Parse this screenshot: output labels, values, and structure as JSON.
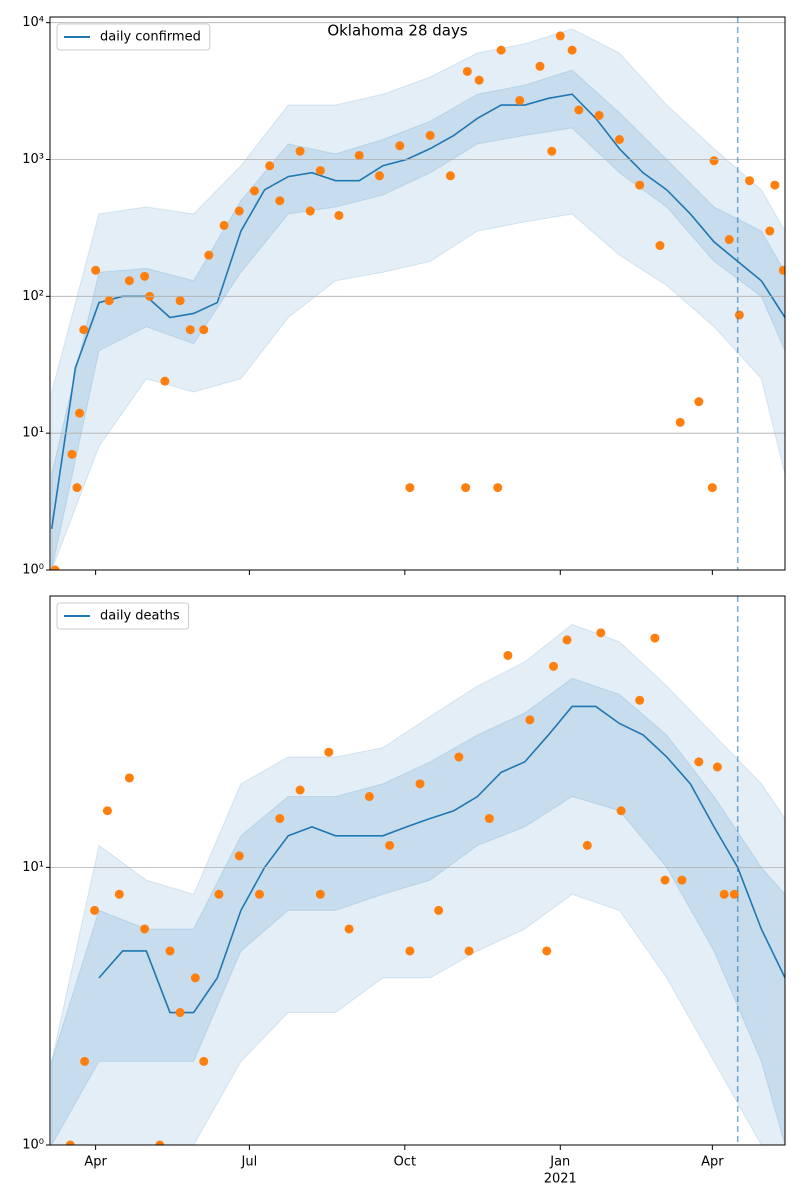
{
  "chart_data": [
    {
      "type": "line",
      "title": "Oklahoma 28 days",
      "log_y": true,
      "grid": true,
      "legend": "upper left",
      "xlim": [
        -27,
        408
      ],
      "xticks": [
        0,
        91,
        183,
        275,
        365
      ],
      "xtick_labels": false,
      "ylim": [
        1,
        11000
      ],
      "yticks": [
        {
          "value": 1,
          "label": "10⁰"
        },
        {
          "value": 10,
          "label": "10¹"
        },
        {
          "value": 100,
          "label": "10²"
        },
        {
          "value": 1000,
          "label": "10³"
        },
        {
          "value": 10000,
          "label": "10⁴"
        }
      ],
      "vline": 380,
      "bands": [
        {
          "color": "#1f77b4",
          "opacity": 0.12,
          "x": [
            -26,
            2,
            30,
            58,
            86,
            114,
            142,
            170,
            198,
            226,
            254,
            282,
            310,
            338,
            366,
            394,
            408
          ],
          "lower": [
            1,
            8,
            25,
            20,
            25,
            70,
            130,
            150,
            180,
            300,
            350,
            400,
            200,
            120,
            60,
            25,
            5
          ],
          "upper": [
            20,
            400,
            450,
            400,
            900,
            2500,
            2500,
            3000,
            4000,
            6000,
            7000,
            9000,
            6000,
            2500,
            1200,
            600,
            300
          ]
        },
        {
          "color": "#1f77b4",
          "opacity": 0.15,
          "x": [
            -26,
            2,
            30,
            58,
            86,
            114,
            142,
            170,
            198,
            226,
            254,
            282,
            310,
            338,
            366,
            394,
            408
          ],
          "lower": [
            1,
            40,
            60,
            45,
            150,
            400,
            450,
            550,
            800,
            1300,
            1500,
            1700,
            800,
            450,
            180,
            100,
            40
          ],
          "upper": [
            5,
            150,
            160,
            130,
            500,
            1300,
            1100,
            1400,
            1900,
            3000,
            3500,
            4500,
            2200,
            1000,
            450,
            300,
            150
          ]
        }
      ],
      "series": [
        {
          "name": "daily confirmed",
          "color": "#1f77b4",
          "x": [
            -26,
            -12,
            2,
            16,
            30,
            44,
            58,
            72,
            86,
            100,
            114,
            128,
            142,
            156,
            170,
            184,
            198,
            212,
            226,
            240,
            254,
            268,
            282,
            296,
            310,
            324,
            338,
            352,
            366,
            380,
            394,
            408
          ],
          "values": [
            2,
            30,
            90,
            100,
            100,
            70,
            75,
            90,
            300,
            600,
            750,
            800,
            700,
            700,
            900,
            1000,
            1200,
            1500,
            2000,
            2500,
            2500,
            2800,
            3000,
            2000,
            1200,
            800,
            600,
            400,
            250,
            180,
            130,
            70
          ]
        }
      ],
      "scatter": {
        "color": "#ff7f0e",
        "x": [
          -24,
          -14,
          -11,
          -9.5,
          -7,
          0,
          8,
          20,
          29,
          32,
          41,
          50,
          56,
          64,
          67,
          76,
          85,
          94,
          103,
          109,
          121,
          127,
          133,
          144,
          156,
          168,
          180,
          186,
          198,
          210,
          219,
          220,
          227,
          238,
          240,
          251,
          263,
          270,
          275,
          282,
          286,
          298,
          310,
          322,
          334,
          346,
          357,
          365,
          366,
          375,
          381,
          387,
          399,
          402,
          407
        ],
        "values": [
          1,
          7,
          4,
          14,
          57,
          155,
          93,
          130,
          140,
          100,
          24,
          93,
          57,
          57,
          200,
          330,
          420,
          590,
          900,
          500,
          1150,
          420,
          830,
          390,
          1070,
          760,
          1260,
          4,
          1500,
          760,
          4,
          4400,
          3800,
          4,
          6300,
          2700,
          4800,
          1150,
          8000,
          6300,
          2300,
          2100,
          1400,
          650,
          235,
          12,
          17,
          4,
          980,
          260,
          73,
          700,
          300,
          650,
          155
        ]
      }
    },
    {
      "type": "line",
      "log_y": true,
      "grid": true,
      "legend": "upper left",
      "xlim": [
        -27,
        408
      ],
      "xticks": [
        {
          "value": 0,
          "label": "Apr"
        },
        {
          "value": 91,
          "label": "Jul"
        },
        {
          "value": 183,
          "label": "Oct"
        },
        {
          "value": 275,
          "label": "Jan"
        },
        {
          "value": 365,
          "label": "Apr"
        }
      ],
      "year_label": {
        "value": 275,
        "label": "2021"
      },
      "ylim": [
        1,
        95
      ],
      "yticks": [
        {
          "value": 1,
          "label": "10⁰"
        },
        {
          "value": 10,
          "label": "10¹"
        }
      ],
      "vline": 380,
      "bands": [
        {
          "color": "#1f77b4",
          "opacity": 0.12,
          "x": [
            -26,
            2,
            30,
            58,
            86,
            114,
            142,
            170,
            198,
            226,
            254,
            282,
            310,
            338,
            366,
            394,
            408
          ],
          "lower": [
            1,
            1,
            1,
            1,
            2,
            3,
            3,
            4,
            4,
            5,
            6,
            8,
            7,
            4,
            2,
            1,
            1
          ],
          "upper": [
            2,
            12,
            9,
            8,
            20,
            25,
            25,
            27,
            35,
            45,
            55,
            75,
            65,
            45,
            30,
            20,
            15
          ]
        },
        {
          "color": "#1f77b4",
          "opacity": 0.15,
          "x": [
            -26,
            2,
            30,
            58,
            86,
            114,
            142,
            170,
            198,
            226,
            254,
            282,
            310,
            338,
            366,
            394,
            408
          ],
          "lower": [
            1,
            2,
            2,
            2,
            5,
            7,
            7,
            8,
            9,
            12,
            14,
            18,
            16,
            10,
            5,
            2,
            1
          ],
          "upper": [
            2,
            7,
            6,
            6,
            13,
            18,
            18,
            20,
            24,
            30,
            36,
            48,
            42,
            30,
            18,
            10,
            8
          ]
        }
      ],
      "series": [
        {
          "name": "daily deaths",
          "color": "#1f77b4",
          "x": [
            -26,
            -12,
            2,
            16,
            30,
            44,
            58,
            72,
            86,
            100,
            114,
            128,
            142,
            156,
            170,
            184,
            198,
            212,
            226,
            240,
            254,
            268,
            282,
            296,
            310,
            324,
            338,
            352,
            366,
            380,
            394,
            408
          ],
          "values": [
            null,
            null,
            4,
            5,
            5,
            3,
            3,
            4,
            7,
            10,
            13,
            14,
            13,
            13,
            13,
            14,
            15,
            16,
            18,
            22,
            24,
            30,
            38,
            38,
            33,
            30,
            25,
            20,
            14,
            10,
            6,
            4
          ]
        }
      ],
      "scatter": {
        "color": "#ff7f0e",
        "x": [
          -15,
          -6.5,
          -0.6,
          7,
          14,
          20,
          29,
          38,
          44,
          50,
          59,
          64,
          73,
          85,
          97,
          109,
          121,
          133,
          138,
          150,
          162,
          174,
          186,
          192,
          203,
          215,
          221,
          233,
          244,
          257,
          267,
          271,
          279,
          291,
          299,
          311,
          322,
          331,
          337,
          347,
          357,
          368,
          372,
          378
        ],
        "values": [
          1,
          2,
          7,
          16,
          8,
          21,
          6,
          1,
          5,
          3,
          4,
          2,
          8,
          11,
          8,
          15,
          19,
          8,
          26,
          6,
          18,
          12,
          5,
          20,
          7,
          25,
          5,
          15,
          58,
          34,
          5,
          53,
          66,
          12,
          70,
          16,
          40,
          67,
          9,
          9,
          24,
          23,
          8,
          8
        ]
      }
    }
  ]
}
